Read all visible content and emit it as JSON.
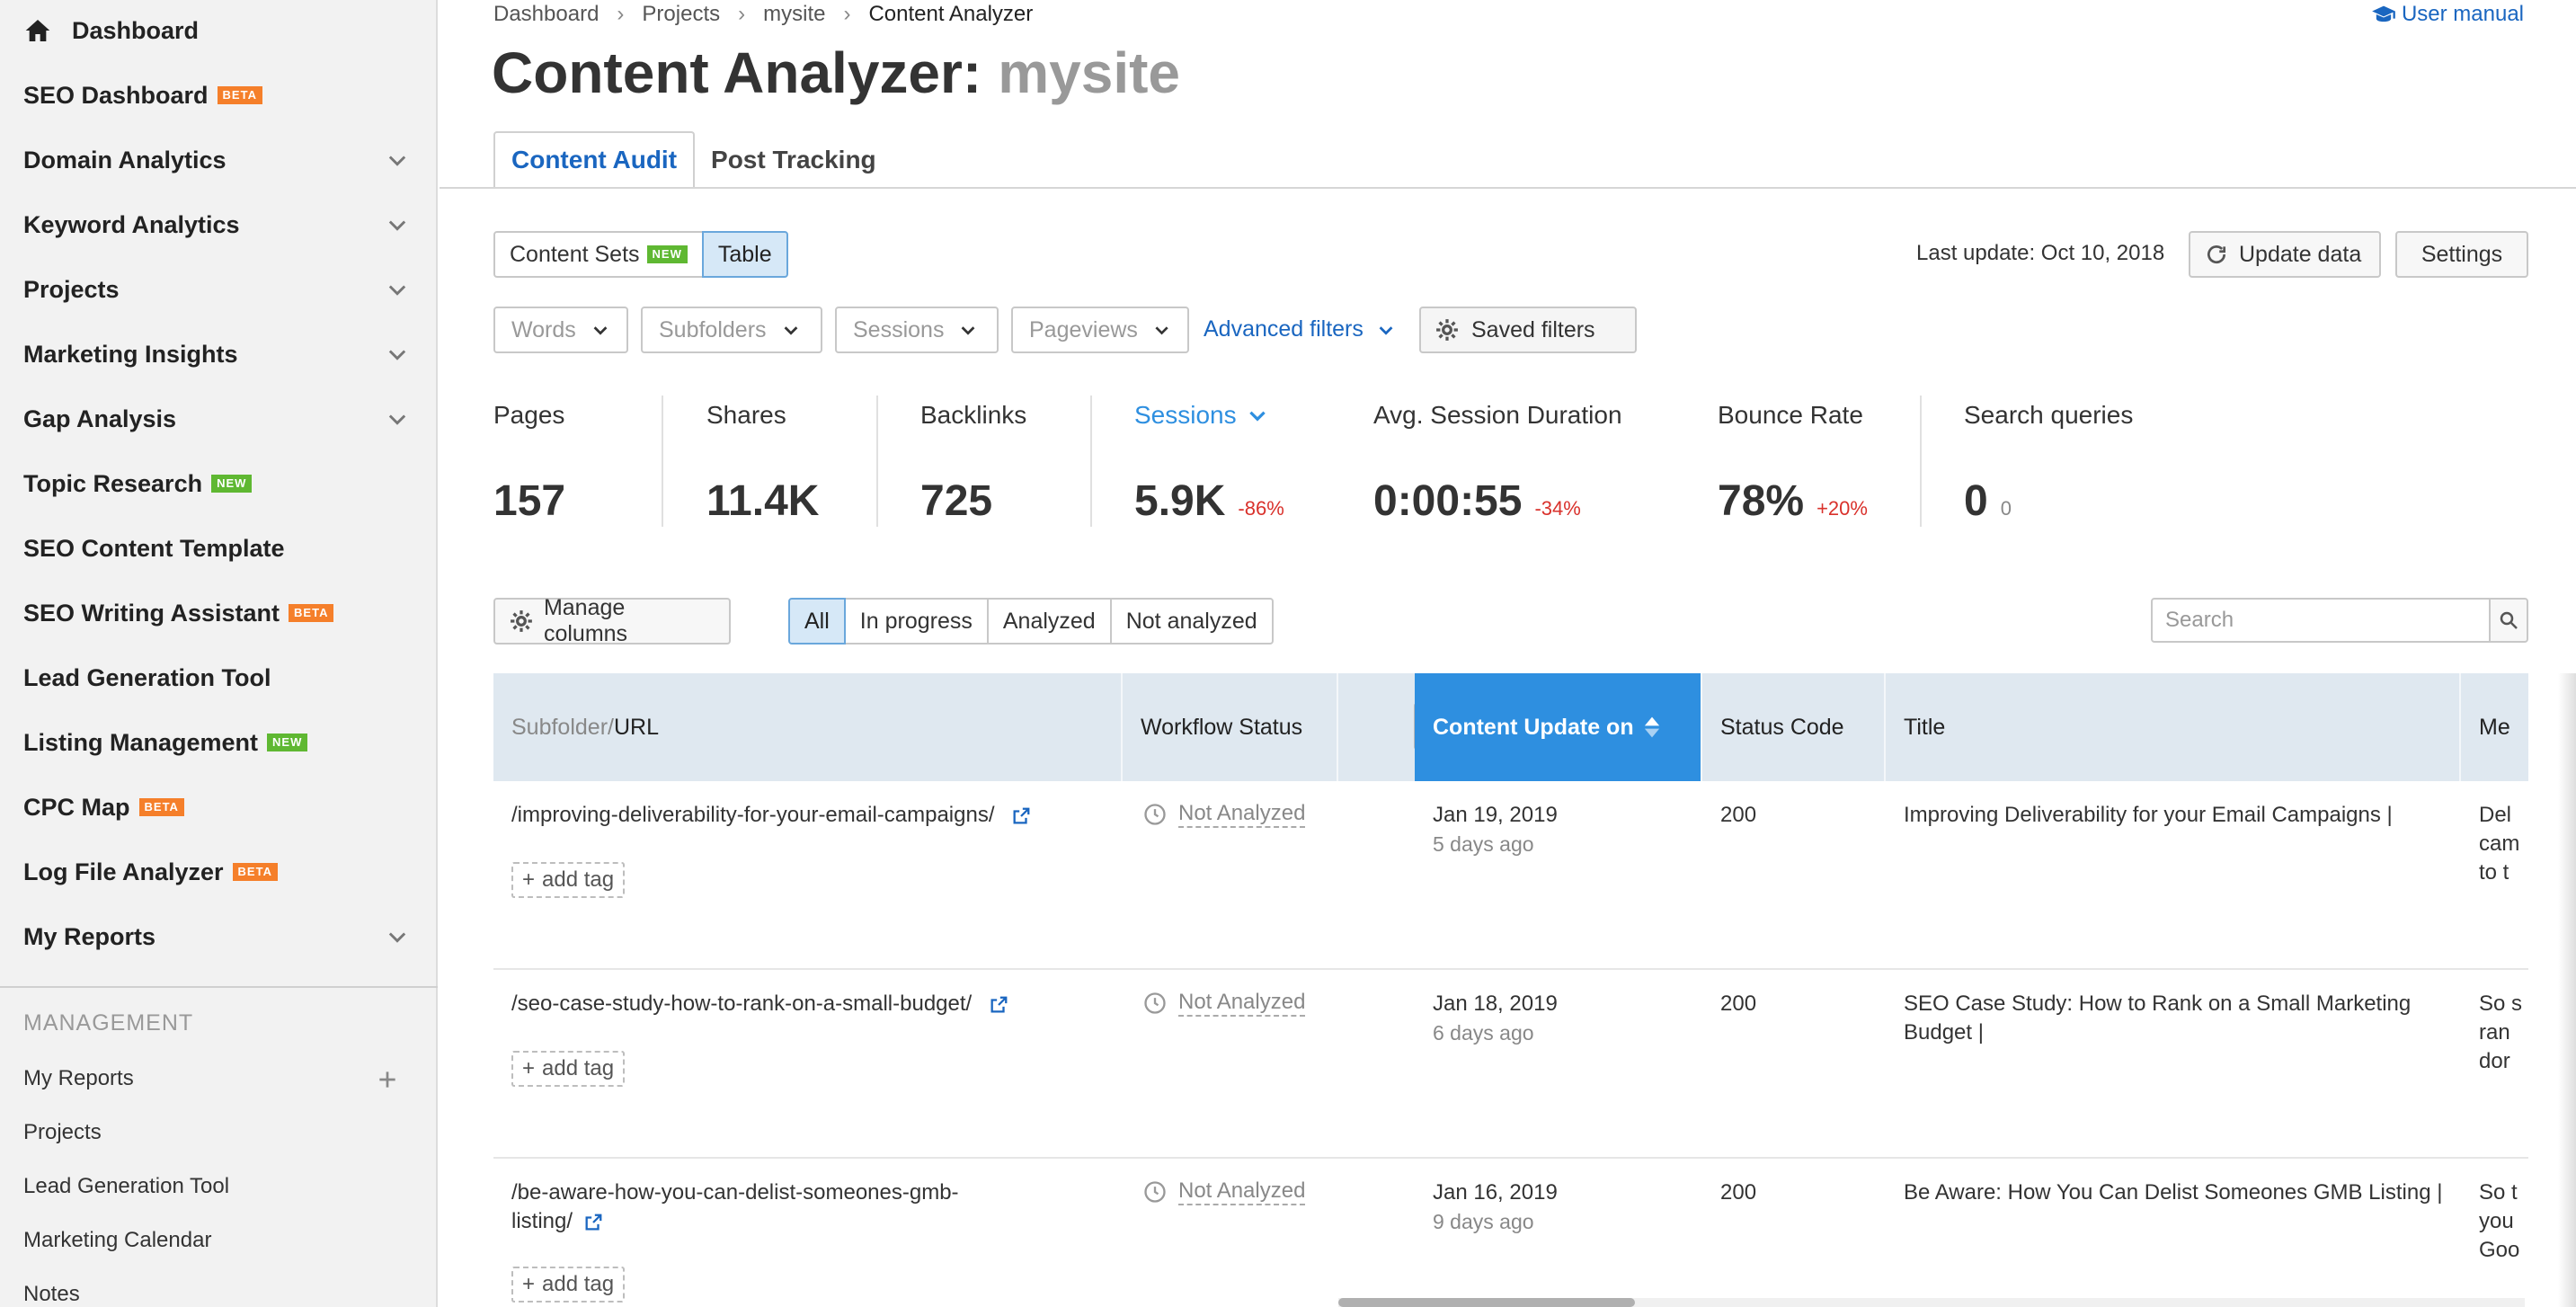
{
  "sidebar": {
    "items": [
      {
        "label": "Dashboard"
      },
      {
        "label": "SEO Dashboard",
        "badge": "BETA"
      },
      {
        "label": "Domain Analytics"
      },
      {
        "label": "Keyword Analytics"
      },
      {
        "label": "Projects"
      },
      {
        "label": "Marketing Insights"
      },
      {
        "label": "Gap Analysis"
      },
      {
        "label": "Topic Research",
        "badge": "NEW"
      },
      {
        "label": "SEO Content Template"
      },
      {
        "label": "SEO Writing Assistant",
        "badge": "BETA"
      },
      {
        "label": "Lead Generation Tool"
      },
      {
        "label": "Listing Management",
        "badge": "NEW"
      },
      {
        "label": "CPC Map",
        "badge": "BETA"
      },
      {
        "label": "Log File Analyzer",
        "badge": "BETA"
      },
      {
        "label": "My Reports"
      }
    ],
    "management_heading": "MANAGEMENT",
    "management_items": [
      "My Reports",
      "Projects",
      "Lead Generation Tool",
      "Marketing Calendar",
      "Notes"
    ]
  },
  "breadcrumb": [
    "Dashboard",
    "Projects",
    "mysite",
    "Content Analyzer"
  ],
  "user_manual": "User manual",
  "title": {
    "main": "Content Analyzer:",
    "site": "mysite"
  },
  "tabs": [
    "Content Audit",
    "Post Tracking"
  ],
  "view_toggle": {
    "content_sets": "Content Sets",
    "content_sets_badge": "NEW",
    "table": "Table"
  },
  "last_update": "Last update: Oct 10, 2018",
  "update_data": "Update data",
  "settings": "Settings",
  "filters": [
    "Words",
    "Subfolders",
    "Sessions",
    "Pageviews"
  ],
  "advanced_filters": "Advanced filters",
  "saved_filters": "Saved filters",
  "metrics": [
    {
      "label": "Pages",
      "value": "157",
      "delta": ""
    },
    {
      "label": "Shares",
      "value": "11.4K",
      "delta": ""
    },
    {
      "label": "Backlinks",
      "value": "725",
      "delta": ""
    },
    {
      "label": "Sessions",
      "value": "5.9K",
      "delta": "-86%"
    },
    {
      "label": "Avg. Session Duration",
      "value": "0:00:55",
      "delta": "-34%"
    },
    {
      "label": "Bounce Rate",
      "value": "78%",
      "delta": "+20%"
    },
    {
      "label": "Search queries",
      "value": "0",
      "delta": "0"
    }
  ],
  "manage_columns": "Manage columns",
  "status_filter": [
    "All",
    "In progress",
    "Analyzed",
    "Not analyzed"
  ],
  "search_placeholder": "Search",
  "table": {
    "headers": {
      "subfolder": "Subfolder/",
      "url": "URL",
      "workflow": "Workflow Status",
      "content_update": "Content Update on",
      "status_code": "Status Code",
      "title": "Title",
      "meta": "Me"
    },
    "add_tag": "add tag",
    "rows": [
      {
        "url": "/improving-deliverability-for-your-email-campaigns/",
        "status": "Not Analyzed",
        "date": "Jan 19, 2019",
        "ago": "5 days ago",
        "code": "200",
        "title": "Improving Deliverability for your Email Campaigns |",
        "meta": [
          "Del",
          "cam",
          "to t"
        ]
      },
      {
        "url": "/seo-case-study-how-to-rank-on-a-small-budget/",
        "status": "Not Analyzed",
        "date": "Jan 18, 2019",
        "ago": "6 days ago",
        "code": "200",
        "title": "SEO Case Study: How to Rank on a Small Marketing Budget |",
        "meta": [
          "So s",
          "ran",
          "dor"
        ]
      },
      {
        "url": "/be-aware-how-you-can-delist-someones-gmb-listing/",
        "url_line1": "/be-aware-how-you-can-delist-someones-gmb-",
        "url_line2": "listing/",
        "status": "Not Analyzed",
        "date": "Jan 16, 2019",
        "ago": "9 days ago",
        "code": "200",
        "title": "Be Aware: How You Can Delist Someones GMB Listing |",
        "meta": [
          "So t",
          "you",
          "Goo"
        ]
      }
    ]
  },
  "colors": {
    "accent": "#1a66c0",
    "sorted_header": "#2e8fe0",
    "beta": "#f57f2a",
    "new": "#5fb832",
    "negative": "#d9312b"
  }
}
